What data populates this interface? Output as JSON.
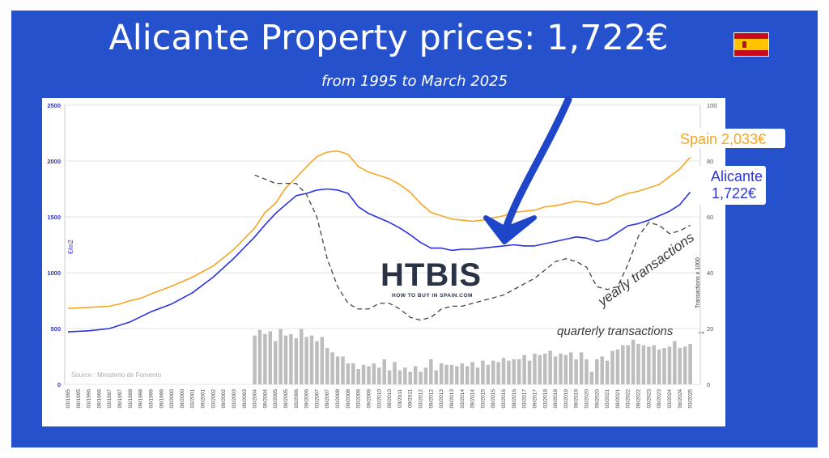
{
  "header": {
    "title": "Alicante Property prices: 1,722€",
    "subtitle": "from 1995 to March 2025"
  },
  "flag": {
    "colors": {
      "red": "#c60b1e",
      "yellow": "#ffc400"
    }
  },
  "colors": {
    "frame": "#2551cc",
    "spain": "#f5a623",
    "alicante": "#2b33e0",
    "yearly": "#444444",
    "quarterly": "#bdbdbd",
    "arrow": "#1f45c8"
  },
  "logo": {
    "main": "HTBIS",
    "tagline": "HOW TO BUY IN SPAIN.COM"
  },
  "chart_data": {
    "type": "line",
    "source": "Source : Ministerio de Fomento",
    "ylabel_left": "€/m2",
    "ylabel_right": "Transactions x 1000",
    "ylim_left": [
      0,
      2500
    ],
    "ylim_right": [
      0,
      100
    ],
    "yticks_left": [
      "0",
      "500",
      "1000",
      "1500",
      "2000",
      "2500"
    ],
    "yticks_right": [
      "0",
      "20",
      "40",
      "60",
      "80",
      "100"
    ],
    "x_tick_labels": [
      "03/1995",
      "09/1995",
      "03/1996",
      "09/1996",
      "03/1997",
      "09/1997",
      "03/1998",
      "09/1998",
      "03/1999",
      "09/1999",
      "03/2000",
      "09/2000",
      "03/2001",
      "09/2001",
      "03/2002",
      "09/2002",
      "03/2003",
      "09/2003",
      "03/2004",
      "09/2004",
      "03/2005",
      "09/2005",
      "03/2006",
      "09/2006",
      "03/2007",
      "09/2007",
      "03/2008",
      "09/2008",
      "03/2009",
      "09/2009",
      "03/2010",
      "09/2010",
      "03/2011",
      "09/2011",
      "03/2012",
      "09/2012",
      "03/2013",
      "09/2013",
      "03/2014",
      "09/2014",
      "03/2015",
      "09/2015",
      "03/2016",
      "09/2016",
      "03/2017",
      "09/2017",
      "03/2018",
      "09/2018",
      "03/2019",
      "09/2019",
      "03/2020",
      "09/2020",
      "03/2021",
      "09/2021",
      "03/2022",
      "09/2022",
      "03/2023",
      "09/2023",
      "03/2024",
      "09/2024",
      "03/2025"
    ],
    "x_start_year": 1995,
    "x_end_year": 2025,
    "series": [
      {
        "name": "Spain 2,033€",
        "axis": "left",
        "x": [
          1995,
          1996,
          1997,
          1997.5,
          1998,
          1998.5,
          1999,
          2000,
          2001,
          2002,
          2003,
          2004,
          2004.5,
          2005,
          2005.5,
          2006,
          2006.5,
          2007,
          2007.5,
          2008,
          2008.5,
          2009,
          2009.5,
          2010,
          2010.5,
          2011,
          2011.5,
          2012,
          2012.5,
          2013,
          2013.5,
          2014,
          2014.5,
          2015,
          2016,
          2016.5,
          2017,
          2017.5,
          2018,
          2018.5,
          2019,
          2019.5,
          2020,
          2020.5,
          2021,
          2021.5,
          2022,
          2022.5,
          2023,
          2023.5,
          2024,
          2024.5,
          2025
        ],
        "y": [
          680,
          690,
          700,
          720,
          750,
          770,
          810,
          880,
          960,
          1060,
          1210,
          1400,
          1540,
          1620,
          1760,
          1850,
          1950,
          2040,
          2080,
          2090,
          2060,
          1950,
          1900,
          1870,
          1840,
          1790,
          1720,
          1620,
          1540,
          1510,
          1480,
          1470,
          1460,
          1470,
          1510,
          1540,
          1550,
          1560,
          1590,
          1600,
          1620,
          1640,
          1630,
          1610,
          1630,
          1680,
          1710,
          1730,
          1760,
          1790,
          1860,
          1930,
          2033
        ]
      },
      {
        "name": "Alicante 1,722€",
        "axis": "left",
        "x": [
          1995,
          1996,
          1997,
          1998,
          1999,
          2000,
          2001,
          2002,
          2003,
          2004,
          2004.5,
          2005,
          2005.5,
          2006,
          2006.5,
          2007,
          2007.5,
          2008,
          2008.5,
          2009,
          2009.5,
          2010,
          2010.5,
          2011,
          2011.5,
          2012,
          2012.5,
          2013,
          2013.5,
          2014,
          2014.5,
          2015,
          2016,
          2016.5,
          2017,
          2017.5,
          2018,
          2018.5,
          2019,
          2019.5,
          2020,
          2020.5,
          2021,
          2021.5,
          2022,
          2022.5,
          2023,
          2023.5,
          2024,
          2024.5,
          2025
        ],
        "y": [
          470,
          480,
          500,
          560,
          650,
          720,
          820,
          960,
          1130,
          1320,
          1430,
          1530,
          1610,
          1690,
          1710,
          1740,
          1750,
          1740,
          1710,
          1590,
          1530,
          1490,
          1450,
          1400,
          1340,
          1270,
          1220,
          1220,
          1200,
          1210,
          1210,
          1220,
          1240,
          1250,
          1240,
          1240,
          1260,
          1280,
          1300,
          1320,
          1310,
          1280,
          1300,
          1360,
          1420,
          1440,
          1470,
          1510,
          1550,
          1610,
          1722
        ]
      },
      {
        "name": "yearly transactions",
        "axis": "right",
        "x": [
          2004,
          2005,
          2006,
          2006.5,
          2007,
          2007.5,
          2008,
          2008.5,
          2009,
          2009.5,
          2010,
          2010.5,
          2011,
          2011.5,
          2012,
          2012.5,
          2013,
          2013.5,
          2014,
          2014.5,
          2015,
          2016,
          2016.5,
          2017,
          2017.5,
          2018,
          2018.5,
          2019,
          2019.5,
          2020,
          2020.5,
          2021,
          2021.5,
          2022,
          2022.5,
          2023,
          2023.5,
          2024,
          2024.5,
          2025
        ],
        "y": [
          75,
          72,
          72,
          68,
          60,
          45,
          35,
          29,
          27,
          27,
          29,
          29,
          27,
          24,
          23,
          24,
          27,
          28,
          28,
          29,
          30,
          32,
          34,
          36,
          38,
          41,
          44,
          45,
          44,
          42,
          35,
          34,
          35,
          43,
          53,
          58,
          57,
          54,
          55,
          57
        ]
      }
    ],
    "bars": {
      "name": "quarterly transactions",
      "axis": "right",
      "x": [
        2004.0,
        2004.25,
        2004.5,
        2004.75,
        2005.0,
        2005.25,
        2005.5,
        2005.75,
        2006.0,
        2006.25,
        2006.5,
        2006.75,
        2007.0,
        2007.25,
        2007.5,
        2007.75,
        2008.0,
        2008.25,
        2008.5,
        2008.75,
        2009.0,
        2009.25,
        2009.5,
        2009.75,
        2010.0,
        2010.25,
        2010.5,
        2010.75,
        2011.0,
        2011.25,
        2011.5,
        2011.75,
        2012.0,
        2012.25,
        2012.5,
        2012.75,
        2013.0,
        2013.25,
        2013.5,
        2013.75,
        2014.0,
        2014.25,
        2014.5,
        2014.75,
        2015.0,
        2015.25,
        2015.5,
        2015.75,
        2016.0,
        2016.25,
        2016.5,
        2016.75,
        2017.0,
        2017.25,
        2017.5,
        2017.75,
        2018.0,
        2018.25,
        2018.5,
        2018.75,
        2019.0,
        2019.25,
        2019.5,
        2019.75,
        2020.0,
        2020.25,
        2020.5,
        2020.75,
        2021.0,
        2021.25,
        2021.5,
        2021.75,
        2022.0,
        2022.25,
        2022.5,
        2022.75,
        2023.0,
        2023.25,
        2023.5,
        2023.75,
        2024.0,
        2024.25,
        2024.5,
        2024.75,
        2025.0
      ],
      "values": [
        17.5,
        19.5,
        18.0,
        19.0,
        15.5,
        19.8,
        17.5,
        18.0,
        16.5,
        19.8,
        17.0,
        17.5,
        15.5,
        17.0,
        13.0,
        11.5,
        10.0,
        10.0,
        7.5,
        7.5,
        5.5,
        7.0,
        6.5,
        7.5,
        6.0,
        9.0,
        5.0,
        8.0,
        5.0,
        6.0,
        4.5,
        6.5,
        4.5,
        6.0,
        9.0,
        5.0,
        7.5,
        7.0,
        7.0,
        6.5,
        7.5,
        6.5,
        8.0,
        6.0,
        8.5,
        7.0,
        8.5,
        8.0,
        9.5,
        8.5,
        9.0,
        9.0,
        10.5,
        8.5,
        11.0,
        10.5,
        11.0,
        12.0,
        10.0,
        11.0,
        10.5,
        11.5,
        9.0,
        11.5,
        9.0,
        4.5,
        9.0,
        10.0,
        8.5,
        12.0,
        12.5,
        14.0,
        14.0,
        16.0,
        14.5,
        14.0,
        13.5,
        14.0,
        12.5,
        13.0,
        13.5,
        15.5,
        13.0,
        13.5,
        14.5
      ]
    },
    "annotations": [
      {
        "text": "Spain 2,033€",
        "series": 0
      },
      {
        "text": "Alicante",
        "series": 1
      },
      {
        "text": "1,722€",
        "series": 1
      },
      {
        "text": "yearly transactions",
        "series": 2
      },
      {
        "text": "quarterly transactions",
        "series": 3
      }
    ],
    "grid": true
  }
}
